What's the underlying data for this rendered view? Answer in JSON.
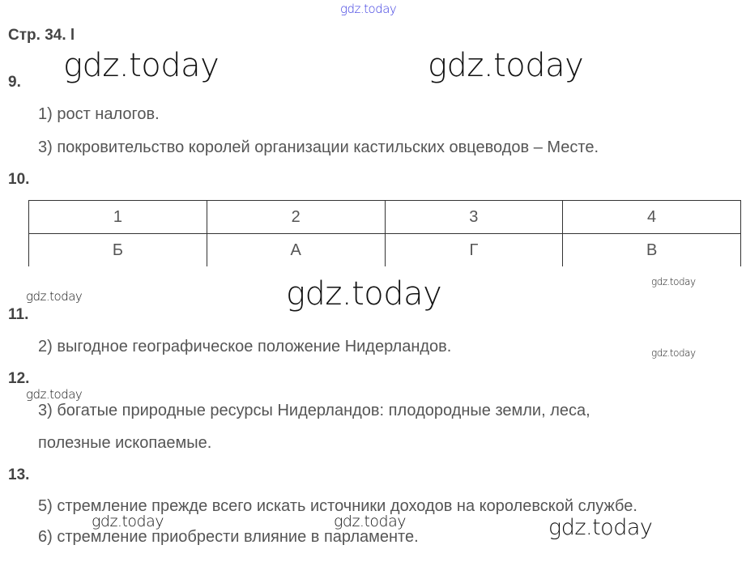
{
  "watermark": "gdz.today",
  "header": "Стр. 34. l",
  "q9": {
    "num": "9.",
    "answers": [
      "1) рост налогов.",
      "3) покровительство королей организации кастильских овцеводов – Месте."
    ]
  },
  "q10": {
    "num": "10.",
    "table": {
      "header": [
        "1",
        "2",
        "3",
        "4"
      ],
      "row": [
        "Б",
        "А",
        "Г",
        "В"
      ]
    }
  },
  "q11": {
    "num": "11.",
    "answers": [
      "2) выгодное географическое положение Нидерландов."
    ]
  },
  "q12": {
    "num": "12.",
    "answers": [
      "3) богатые природные ресурсы Нидерландов: плодородные земли, леса,",
      "полезные ископаемые."
    ]
  },
  "q13": {
    "num": "13.",
    "answers": [
      "5) стремление прежде всего искать источники доходов на королевской службе.",
      "6) стремление приобрести влияние в парламенте."
    ]
  }
}
